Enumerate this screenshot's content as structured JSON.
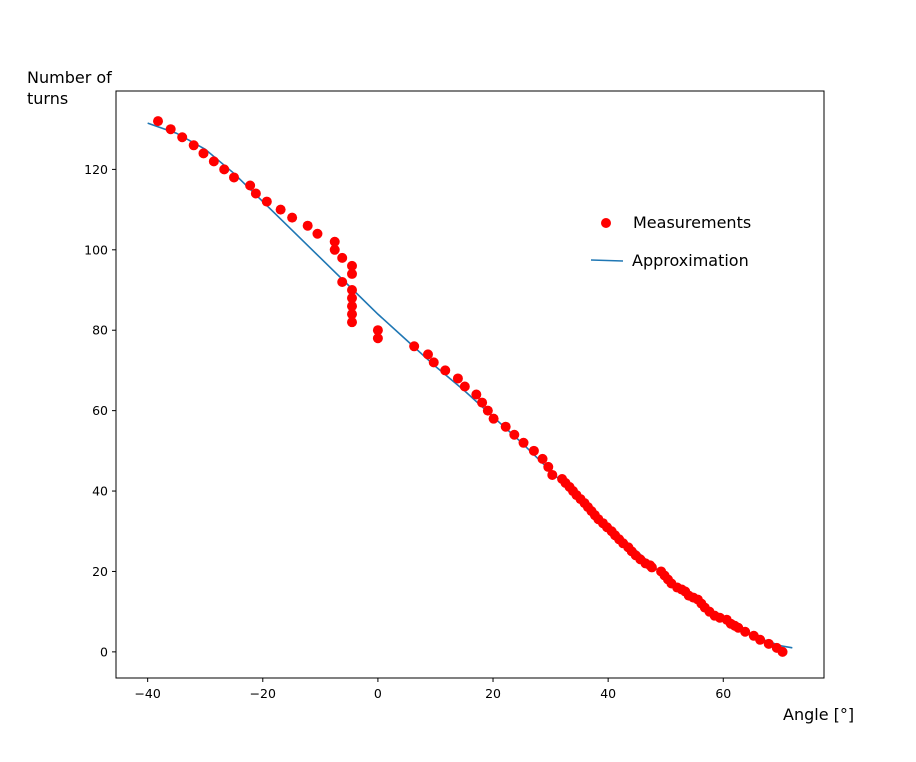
{
  "chart_data": {
    "type": "scatter",
    "title": "",
    "xlabel": "Angle [°]",
    "ylabel": "Number of\nturns",
    "xlim": [
      -45.5,
      77.5
    ],
    "ylim": [
      -6.5,
      139.5
    ],
    "xticks": [
      -40,
      -20,
      0,
      20,
      40,
      60
    ],
    "yticks": [
      0,
      20,
      40,
      60,
      80,
      100,
      120
    ],
    "grid": false,
    "legend_position": "upper-right",
    "series": [
      {
        "name": "Measurements",
        "kind": "scatter",
        "color": "#ff0000",
        "points": [
          [
            -38.2,
            132
          ],
          [
            -36.0,
            130
          ],
          [
            -34.0,
            128
          ],
          [
            -32.0,
            126
          ],
          [
            -30.3,
            124
          ],
          [
            -28.5,
            122
          ],
          [
            -26.7,
            120
          ],
          [
            -25.0,
            118
          ],
          [
            -22.2,
            116
          ],
          [
            -21.2,
            114
          ],
          [
            -19.3,
            112
          ],
          [
            -16.9,
            110
          ],
          [
            -14.9,
            108
          ],
          [
            -12.2,
            106
          ],
          [
            -10.5,
            104
          ],
          [
            -7.5,
            102
          ],
          [
            -7.5,
            100
          ],
          [
            -6.2,
            98
          ],
          [
            -6.2,
            92
          ],
          [
            -4.5,
            96
          ],
          [
            -4.5,
            94
          ],
          [
            -4.5,
            90
          ],
          [
            -4.5,
            88
          ],
          [
            -4.5,
            86
          ],
          [
            -4.5,
            84
          ],
          [
            -4.5,
            82
          ],
          [
            0.0,
            80
          ],
          [
            0.0,
            78
          ],
          [
            6.3,
            76
          ],
          [
            8.7,
            74
          ],
          [
            9.7,
            72
          ],
          [
            11.7,
            70
          ],
          [
            13.9,
            68
          ],
          [
            15.1,
            66
          ],
          [
            17.1,
            64
          ],
          [
            18.1,
            62
          ],
          [
            19.1,
            60
          ],
          [
            20.1,
            58
          ],
          [
            22.2,
            56
          ],
          [
            23.7,
            54
          ],
          [
            25.3,
            52
          ],
          [
            27.1,
            50
          ],
          [
            28.6,
            48
          ],
          [
            29.6,
            46
          ],
          [
            30.3,
            44
          ],
          [
            32.0,
            43
          ],
          [
            32.6,
            42
          ],
          [
            33.3,
            41
          ],
          [
            33.9,
            40
          ],
          [
            34.5,
            39
          ],
          [
            35.2,
            38
          ],
          [
            35.9,
            37
          ],
          [
            36.5,
            36
          ],
          [
            37.1,
            35
          ],
          [
            37.7,
            34
          ],
          [
            38.3,
            33
          ],
          [
            39.1,
            32
          ],
          [
            39.8,
            31
          ],
          [
            40.6,
            30
          ],
          [
            41.2,
            29
          ],
          [
            41.9,
            28
          ],
          [
            42.6,
            27
          ],
          [
            43.5,
            26
          ],
          [
            44.1,
            25
          ],
          [
            44.8,
            24
          ],
          [
            45.6,
            23
          ],
          [
            46.5,
            22
          ],
          [
            47.3,
            21.5
          ],
          [
            47.6,
            21
          ],
          [
            49.2,
            20
          ],
          [
            49.8,
            19
          ],
          [
            50.4,
            18
          ],
          [
            51.0,
            17
          ],
          [
            52.0,
            16
          ],
          [
            52.8,
            15.5
          ],
          [
            53.4,
            15
          ],
          [
            54.0,
            14
          ],
          [
            54.8,
            13.5
          ],
          [
            55.6,
            13
          ],
          [
            56.2,
            12
          ],
          [
            56.8,
            11
          ],
          [
            57.6,
            10
          ],
          [
            58.5,
            9
          ],
          [
            59.4,
            8.5
          ],
          [
            60.6,
            8
          ],
          [
            61.3,
            7
          ],
          [
            62.0,
            6.5
          ],
          [
            62.6,
            6
          ],
          [
            63.8,
            5
          ],
          [
            65.3,
            4
          ],
          [
            66.4,
            3
          ],
          [
            67.9,
            2
          ],
          [
            69.3,
            1
          ],
          [
            70.3,
            0
          ]
        ]
      },
      {
        "name": "Approximation",
        "kind": "line",
        "color": "#1f77b4",
        "points": [
          [
            -40,
            131.5
          ],
          [
            -35,
            129
          ],
          [
            -30,
            125
          ],
          [
            -25,
            119
          ],
          [
            -20,
            112
          ],
          [
            -15,
            105
          ],
          [
            -10,
            98
          ],
          [
            -5,
            91
          ],
          [
            0,
            84
          ],
          [
            5,
            77.5
          ],
          [
            10,
            71
          ],
          [
            15,
            65
          ],
          [
            20,
            58.5
          ],
          [
            25,
            52
          ],
          [
            30,
            45
          ],
          [
            35,
            38
          ],
          [
            40,
            31.5
          ],
          [
            45,
            25
          ],
          [
            50,
            18.5
          ],
          [
            55,
            13
          ],
          [
            60,
            8
          ],
          [
            65,
            4
          ],
          [
            70,
            1.5
          ],
          [
            72,
            1
          ]
        ]
      }
    ]
  }
}
